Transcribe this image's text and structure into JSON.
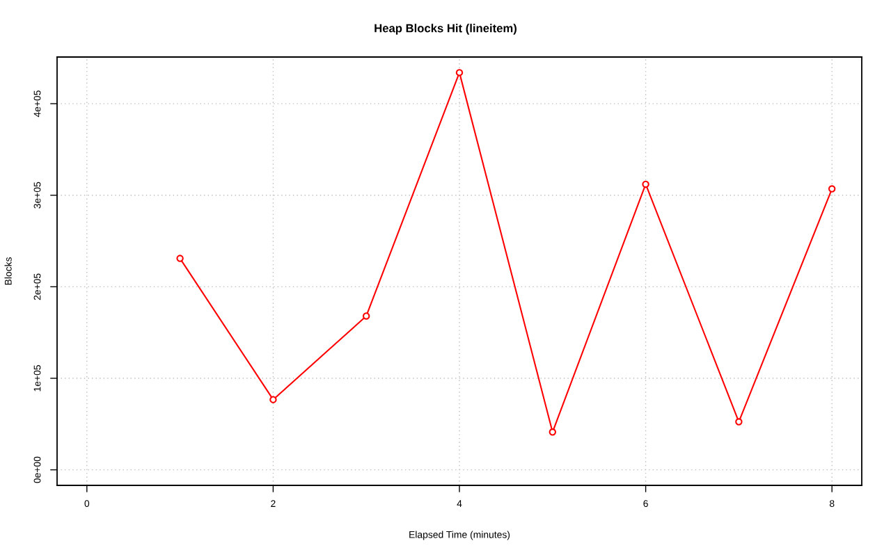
{
  "chart_data": {
    "type": "line",
    "title": "Heap Blocks Hit (lineitem)",
    "xlabel": "Elapsed Time (minutes)",
    "ylabel": "Blocks",
    "x": [
      1,
      2,
      3,
      4,
      5,
      6,
      7,
      8
    ],
    "series": [
      {
        "color": "#ff0000",
        "values": [
          231000,
          76700,
          168000,
          434000,
          41300,
          312000,
          52500,
          307000
        ]
      }
    ],
    "xlim": [
      -0.32,
      8.32
    ],
    "xticks": [
      0,
      2,
      4,
      6,
      8
    ],
    "ylim": [
      -17000,
      451000
    ],
    "yticks": [
      {
        "value": 0,
        "label": "0e+00"
      },
      {
        "value": 100000,
        "label": "1e+05"
      },
      {
        "value": 200000,
        "label": "2e+05"
      },
      {
        "value": 300000,
        "label": "3e+05"
      },
      {
        "value": 400000,
        "label": "4e+05"
      }
    ],
    "grid": true,
    "marker": "circle",
    "line_style": "solid"
  }
}
